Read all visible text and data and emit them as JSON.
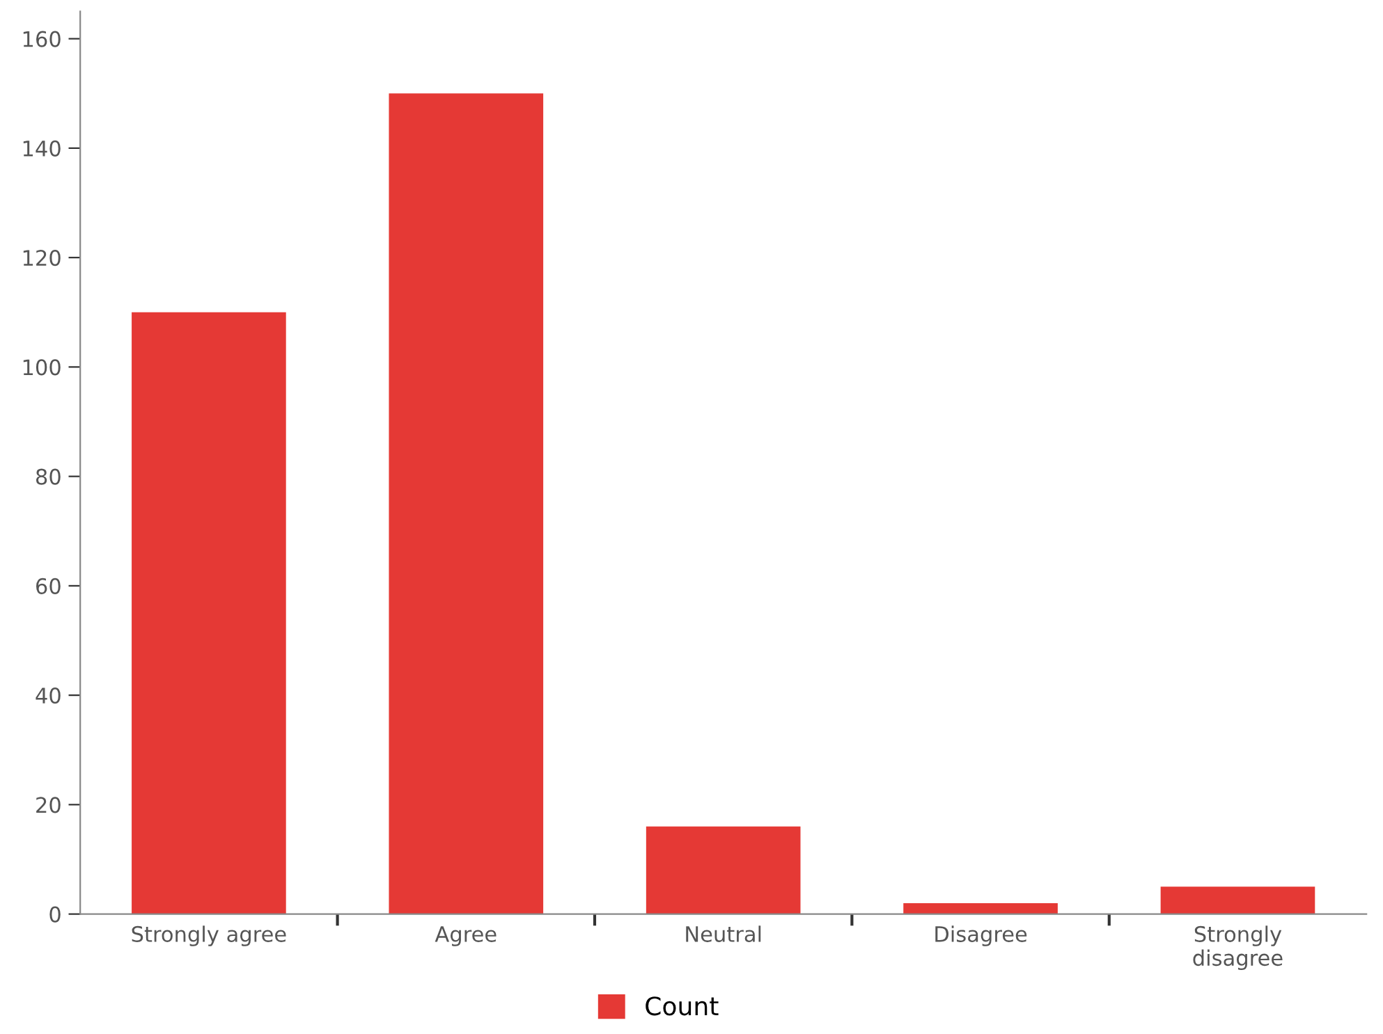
{
  "chart_data": {
    "type": "bar",
    "categories": [
      "Strongly agree",
      "Agree",
      "Neutral",
      "Disagree",
      "Strongly disagree"
    ],
    "series": [
      {
        "name": "Count",
        "color": "#e53935",
        "values": [
          110,
          150,
          16,
          2,
          5
        ]
      }
    ],
    "ylim": [
      0,
      165
    ],
    "yticks": [
      0,
      20,
      40,
      60,
      80,
      100,
      120,
      140,
      160
    ],
    "grid": false,
    "legend": "bottom"
  }
}
